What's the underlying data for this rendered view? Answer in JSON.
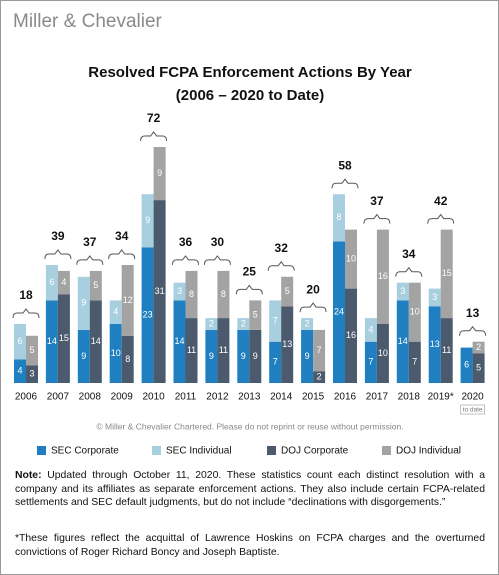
{
  "header": {
    "logo": "Miller & Chevalier"
  },
  "chart_data": {
    "type": "grouped-stacked-bar",
    "title": "Resolved FCPA Enforcement Actions By Year",
    "subtitle": "(2006 – 2020 to Date)",
    "categories": [
      "2006",
      "2007",
      "2008",
      "2009",
      "2010",
      "2011",
      "2012",
      "2013",
      "2014",
      "2015",
      "2016",
      "2017",
      "2018",
      "2019*",
      "2020"
    ],
    "category_note": "to date",
    "series": [
      {
        "name": "SEC Corporate",
        "color": "#1f7fc1",
        "stack": 0,
        "values": [
          4,
          14,
          9,
          10,
          23,
          14,
          9,
          9,
          7,
          9,
          24,
          7,
          14,
          13,
          6
        ]
      },
      {
        "name": "SEC Individual",
        "color": "#a8cfe0",
        "stack": 0,
        "values": [
          6,
          6,
          9,
          4,
          9,
          3,
          2,
          2,
          7,
          2,
          8,
          4,
          3,
          3,
          0
        ]
      },
      {
        "name": "DOJ Corporate",
        "color": "#4b5a6c",
        "stack": 1,
        "values": [
          3,
          15,
          14,
          8,
          31,
          11,
          11,
          9,
          13,
          2,
          16,
          10,
          7,
          11,
          5
        ]
      },
      {
        "name": "DOJ Individual",
        "color": "#a3a3a3",
        "stack": 1,
        "values": [
          5,
          4,
          5,
          12,
          9,
          8,
          8,
          5,
          5,
          7,
          10,
          16,
          10,
          15,
          2
        ]
      }
    ],
    "totals": [
      18,
      39,
      37,
      34,
      72,
      36,
      30,
      25,
      32,
      20,
      58,
      37,
      34,
      42,
      13
    ],
    "source": "© Miller & Chevalier Chartered. Please do not reprint or reuse without permission."
  },
  "note": {
    "label": "Note:",
    "text": "Updated through October 11, 2020. These statistics count each distinct resolution with a company and its affiliates as separate enforcement actions. They also include certain FCPA-related settlements and SEC default judgments, but do not include “declinations with disgorgements.”"
  },
  "footnote": "*These figures reflect the acquittal of Lawrence Hoskins on FCPA charges and the overturned convictions of Roger Richard Boncy and Joseph Baptiste."
}
